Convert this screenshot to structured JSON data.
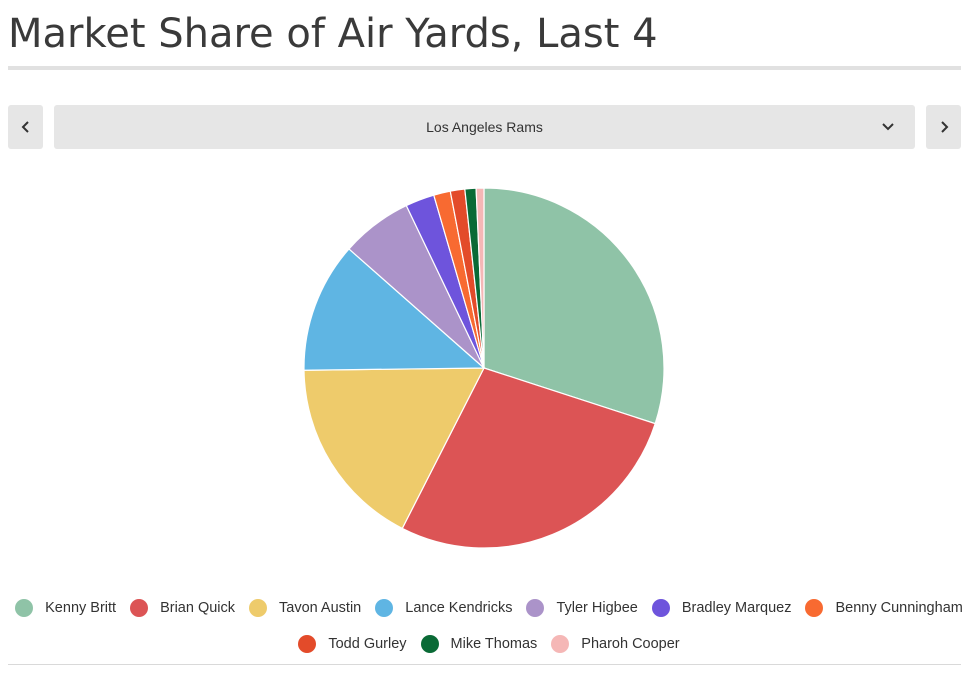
{
  "title": "Market Share of Air Yards, Last 4",
  "selector": {
    "selected_team": "Los Angeles Rams",
    "prev_icon": "chevron-left-icon",
    "next_icon": "chevron-right-icon",
    "dropdown_icon": "chevron-down-icon"
  },
  "chart_data": {
    "type": "pie",
    "title": "Market Share of Air Yards, Last 4",
    "unit": "percent of air yards (estimated)",
    "legend_position": "bottom",
    "labels": [
      "Kenny Britt",
      "Brian Quick",
      "Tavon Austin",
      "Lance Kendricks",
      "Tyler Higbee",
      "Bradley Marquez",
      "Benny Cunningham",
      "Todd Gurley",
      "Mike Thomas",
      "Pharoh Cooper"
    ],
    "values": [
      30.0,
      27.5,
      17.3,
      11.7,
      6.4,
      2.6,
      1.5,
      1.3,
      1.0,
      0.7
    ],
    "colors": [
      "#8fc3a7",
      "#dc5455",
      "#eecb6b",
      "#5fb5e3",
      "#ab93c9",
      "#6e54dc",
      "#f86a31",
      "#e34b2a",
      "#0a6a36",
      "#f5b7b6"
    ]
  }
}
